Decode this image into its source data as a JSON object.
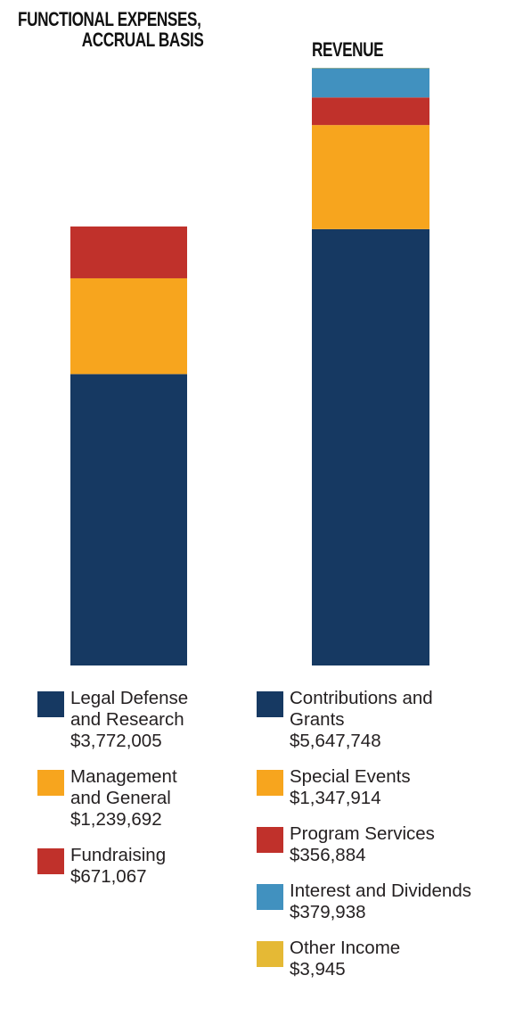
{
  "chart_data": [
    {
      "type": "bar",
      "stacked": true,
      "title_lines": [
        "FUNCTIONAL EXPENSES,",
        "ACCRUAL BASIS"
      ],
      "categories": [
        "Functional Expenses, Accrual Basis"
      ],
      "series": [
        {
          "key": "legal",
          "name_lines": [
            "Legal Defense",
            "and Research"
          ],
          "label": "$3,772,005",
          "values": [
            3772005
          ],
          "color": "#163962"
        },
        {
          "key": "mgmt",
          "name_lines": [
            "Management",
            "and General"
          ],
          "label": "$1,239,692",
          "values": [
            1239692
          ],
          "color": "#f7a51e"
        },
        {
          "key": "fund",
          "name_lines": [
            "Fundraising"
          ],
          "label": "$671,067",
          "values": [
            671067
          ],
          "color": "#c0312b"
        }
      ]
    },
    {
      "type": "bar",
      "stacked": true,
      "title_lines": [
        "REVENUE"
      ],
      "categories": [
        "Revenue"
      ],
      "series": [
        {
          "key": "contrib",
          "name_lines": [
            "Contributions and",
            "Grants"
          ],
          "label": "$5,647,748",
          "values": [
            5647748
          ],
          "color": "#163962"
        },
        {
          "key": "events",
          "name_lines": [
            "Special Events"
          ],
          "label": "$1,347,914",
          "values": [
            1347914
          ],
          "color": "#f7a51e"
        },
        {
          "key": "program",
          "name_lines": [
            "Program Services"
          ],
          "label": "$356,884",
          "values": [
            356884
          ],
          "color": "#c0312b"
        },
        {
          "key": "interest",
          "name_lines": [
            "Interest and Dividends"
          ],
          "label": "$379,938",
          "values": [
            379938
          ],
          "color": "#4191bf"
        },
        {
          "key": "other",
          "name_lines": [
            "Other Income"
          ],
          "label": "$3,945",
          "values": [
            3945
          ],
          "color": "#e5b935"
        }
      ]
    }
  ]
}
